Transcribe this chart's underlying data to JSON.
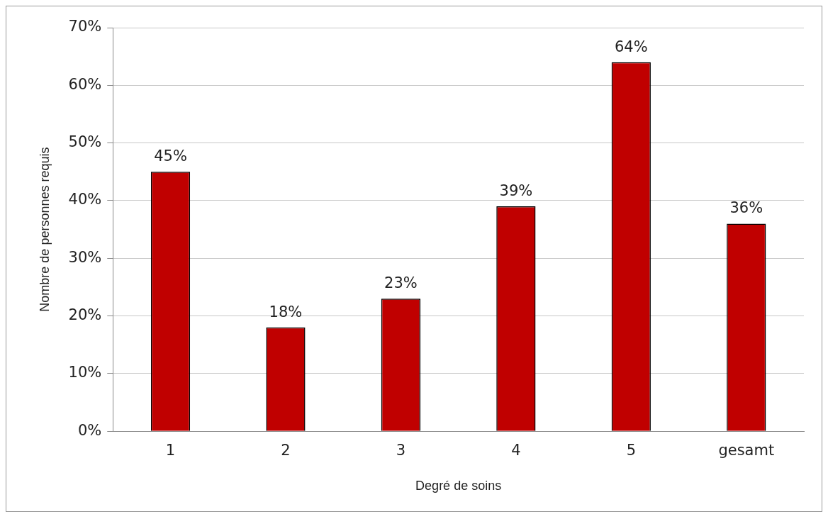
{
  "chart_data": {
    "type": "bar",
    "xlabel": "Degré de soins",
    "ylabel": "Nombre de personnes requis",
    "categories": [
      "1",
      "2",
      "3",
      "4",
      "5",
      "gesamt"
    ],
    "values": [
      45,
      18,
      23,
      39,
      64,
      36
    ],
    "value_labels": [
      "45%",
      "18%",
      "23%",
      "39%",
      "64%",
      "36%"
    ],
    "color": "#c00000",
    "ylim": [
      0,
      70
    ],
    "yticks": [
      {
        "value": 0,
        "label": "0%"
      },
      {
        "value": 10,
        "label": "10%"
      },
      {
        "value": 20,
        "label": "20%"
      },
      {
        "value": 30,
        "label": "30%"
      },
      {
        "value": 40,
        "label": "40%"
      },
      {
        "value": 50,
        "label": "50%"
      },
      {
        "value": 60,
        "label": "60%"
      },
      {
        "value": 70,
        "label": "70%"
      }
    ],
    "grid": "y",
    "legend": false
  }
}
